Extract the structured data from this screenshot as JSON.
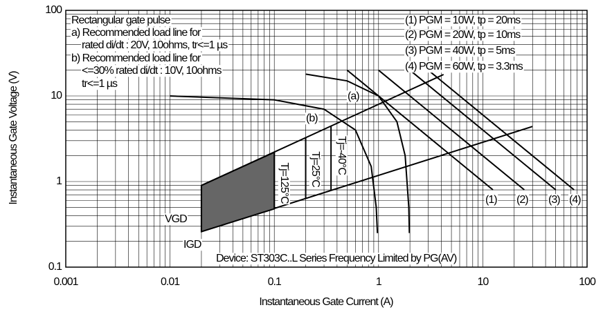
{
  "chart_data": {
    "type": "line",
    "xlabel": "Instantaneous Gate Current (A)",
    "ylabel": "Instantaneous Gate Voltage (V)",
    "xscale": "log",
    "yscale": "log",
    "grid": true,
    "xlim": [
      0.001,
      100
    ],
    "ylim": [
      0.1,
      100
    ],
    "xticks": [
      0.001,
      0.01,
      0.1,
      1,
      10,
      100
    ],
    "yticks": [
      0.1,
      1,
      10,
      100
    ],
    "series": [
      {
        "color": "#000000",
        "x": [
          0.2,
          0.5,
          1,
          1.5,
          1.8,
          1.95,
          1.975
        ],
        "values": [
          18,
          15,
          10,
          5,
          2,
          0.5,
          0.25
        ]
      },
      {
        "color": "#000000",
        "x": [
          0.01,
          0.1,
          0.3,
          0.6,
          0.85,
          0.95,
          0.975
        ],
        "values": [
          10,
          9,
          7,
          4,
          1.5,
          0.5,
          0.25
        ]
      },
      {
        "color": "#000000",
        "x": [
          0.5,
          12.5
        ],
        "values": [
          20,
          0.8
        ]
      },
      {
        "color": "#000000",
        "x": [
          1,
          25
        ],
        "values": [
          20,
          0.8
        ]
      },
      {
        "color": "#000000",
        "x": [
          2,
          50
        ],
        "values": [
          20,
          0.8
        ]
      },
      {
        "color": "#000000",
        "x": [
          3,
          75
        ],
        "values": [
          20,
          0.8
        ]
      },
      {
        "color": "#000000",
        "x": [
          0.02,
          4.2
        ],
        "values": [
          0.9,
          17.8
        ]
      },
      {
        "color": "#000000",
        "x": [
          0.02,
          30
        ],
        "values": [
          0.26,
          4.4
        ]
      },
      {
        "color": "#000000",
        "x": [
          0.02,
          0.02
        ],
        "values": [
          0.26,
          0.9
        ]
      },
      {
        "color": "#000000",
        "x": [
          0.1,
          0.1
        ],
        "values": [
          0.48,
          2.2
        ]
      },
      {
        "color": "#000000",
        "x": [
          0.2,
          0.2
        ],
        "values": [
          0.635,
          3.25
        ]
      },
      {
        "color": "#000000",
        "x": [
          0.35,
          0.35
        ],
        "values": [
          0.79,
          4.45
        ]
      },
      {
        "color": "#000000",
        "fill": "#666666",
        "x": [
          0.02,
          0.1,
          0.1,
          0.02
        ],
        "values": [
          0.26,
          0.48,
          2.2,
          0.9
        ]
      }
    ],
    "annotations": [
      "Rectangular gate pulse",
      "a) Recommended load line for",
      "rated di/dt : 20V, 10ohms, tr<=1 µs",
      "b) Recommended load line for",
      "<=30% rated di/dt : 10V, 10ohms",
      "tr<=1 µs",
      "(1) PGM = 10W,  tp = 20ms",
      "(2) PGM = 20W,  tp = 10ms",
      "(3) PGM = 40W,  tp = 5ms",
      "(4) PGM = 60W,  tp = 3.3ms",
      "(a)",
      "(b)",
      "Tj=125°C",
      "Tj=25°C",
      "Tj=-40°C",
      "VGD",
      "IGD",
      "(1)",
      "(2)",
      "(3)",
      "(4)",
      "Device: ST303C..L Series  Frequency Limited by PG(AV)"
    ]
  }
}
